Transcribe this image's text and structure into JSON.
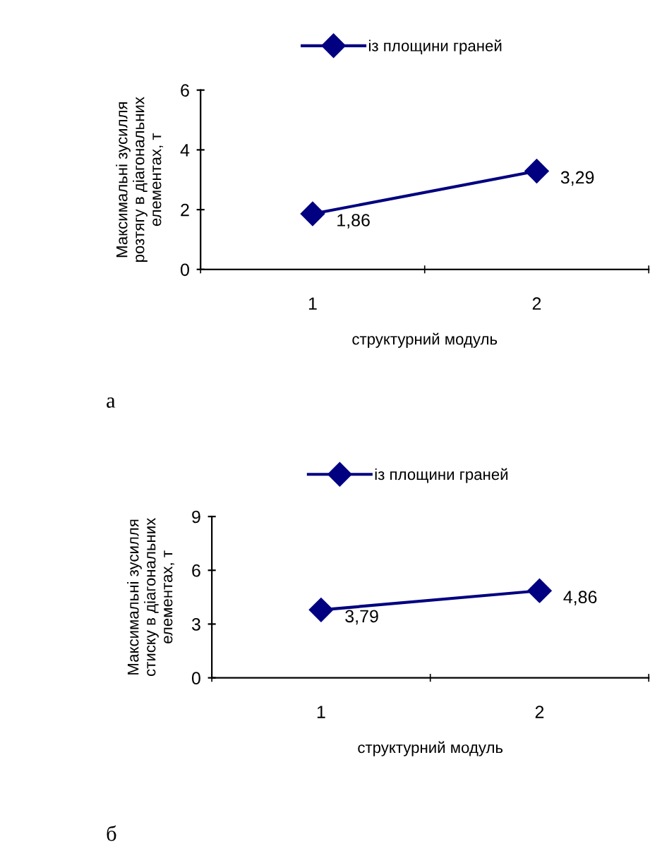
{
  "chart_data": [
    {
      "type": "line",
      "categories": [
        "1",
        "2"
      ],
      "series": [
        {
          "name": "із площини граней",
          "color": "#000080",
          "values": [
            1.86,
            3.29
          ],
          "value_labels": [
            "1,86",
            "3,29"
          ]
        }
      ],
      "ylabel": "Максимальні зусилля\nрозтягу в діагональних\nелементах, т",
      "xlabel": "структурний модуль",
      "ylim": [
        0,
        6
      ],
      "yticks": [
        0,
        2,
        4,
        6
      ],
      "marker": "diamond",
      "line_style": "solid",
      "legend": "top",
      "grid": false,
      "annotations": [
        "а"
      ]
    },
    {
      "type": "line",
      "categories": [
        "1",
        "2"
      ],
      "series": [
        {
          "name": "із площини граней",
          "color": "#000080",
          "values": [
            3.79,
            4.86
          ],
          "value_labels": [
            "3,79",
            "4,86"
          ]
        }
      ],
      "ylabel": "Максимальні зусилля\nстиску в діагональних\nелементах, т",
      "xlabel": "структурний модуль",
      "ylim": [
        0,
        9
      ],
      "yticks": [
        0,
        3,
        6,
        9
      ],
      "marker": "diamond",
      "line_style": "solid",
      "legend": "top",
      "grid": false,
      "annotations": [
        "б"
      ]
    }
  ]
}
